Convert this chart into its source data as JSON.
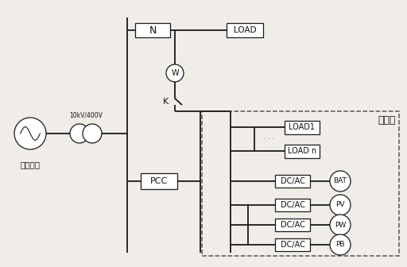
{
  "bg_color": "#f0ede8",
  "line_color": "#1a1a1a",
  "title_label": "微电网",
  "subtitle_label": "公共电网",
  "transformer_label": "10kV/400V",
  "N_label": "N",
  "LOAD_label": "LOAD",
  "PCC_label": "PCC",
  "LOAD1_label": "LOAD1",
  "LOADn_label": "LOAD n",
  "W_label": "W",
  "K_label": "K",
  "DCAC_label": "DC/AC",
  "BAT_label": "BAT",
  "PV_label": "PV",
  "PW_label": "PW",
  "PB_label": "PB"
}
